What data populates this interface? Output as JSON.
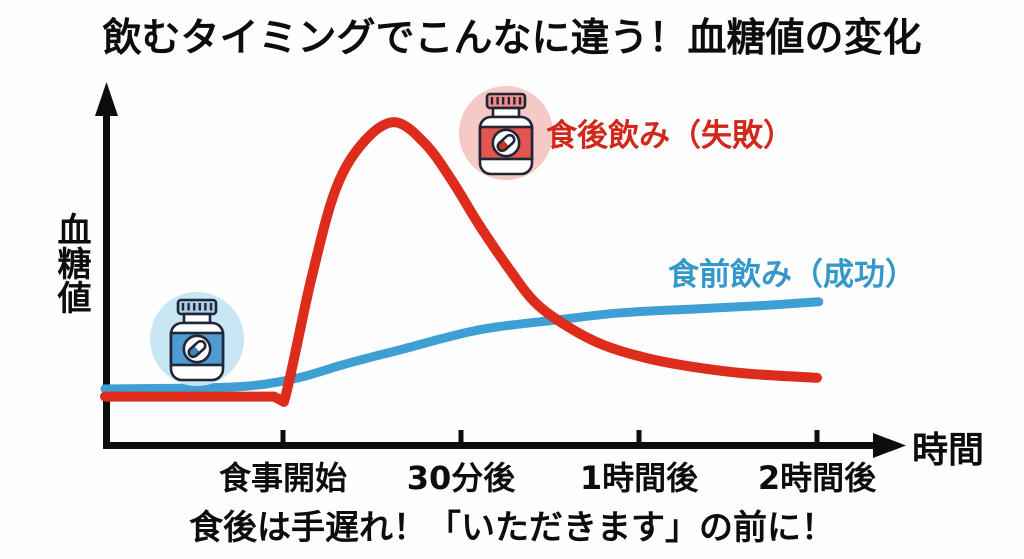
{
  "title": "飲むタイミングでこんなに違う！血糖値の変化",
  "footer": "食後は手遅れ！「いただきます」の前に！",
  "axes": {
    "y_label": "血糖値",
    "x_label": "時間"
  },
  "colors": {
    "axis": "#0d0d0d",
    "red_line": "#dd2b1c",
    "red_text": "#d2271b",
    "blue_line": "#3e9fd4",
    "blue_text": "#3598cb",
    "red_circle_bg": "#f4c9c6",
    "blue_circle_bg": "#c9e6f5",
    "red_bottle_cap": "#ef8d89",
    "red_bottle_label": "#e25550",
    "red_capsule": "#c8372a",
    "blue_bottle_cap": "#a9cde4",
    "blue_bottle_label": "#4f9cd0",
    "blue_capsule": "#3d85b8",
    "bottle_outline": "#202636",
    "bottle_body": "#ffffff"
  },
  "chart_data": {
    "type": "line",
    "x_ticks": [
      "食事開始",
      "30分後",
      "1時間後",
      "2時間後"
    ],
    "x_tick_positions": [
      1,
      2,
      3,
      4
    ],
    "x_axis_label": "時間",
    "y_axis_label": "血糖値",
    "y_unit": "relative glucose level (no numeric scale shown)",
    "series": [
      {
        "name": "食後飲み（失敗）",
        "color_key": "red_line",
        "straight_prefix": 3,
        "points": [
          [
            0,
            14.6
          ],
          [
            0.95,
            14.6
          ],
          [
            1.005,
            13.0
          ],
          [
            1.16,
            50
          ],
          [
            1.3,
            77
          ],
          [
            1.46,
            91
          ],
          [
            1.63,
            96.5
          ],
          [
            1.8,
            90
          ],
          [
            1.95,
            79
          ],
          [
            2.1,
            66
          ],
          [
            2.28,
            52
          ],
          [
            2.42,
            42.5
          ],
          [
            2.6,
            35.5
          ],
          [
            2.8,
            30
          ],
          [
            3.05,
            26
          ],
          [
            3.3,
            23.5
          ],
          [
            3.6,
            21.5
          ],
          [
            4.0,
            20.2
          ]
        ]
      },
      {
        "name": "食前飲み（成功）",
        "color_key": "blue_line",
        "straight_prefix": 0,
        "points": [
          [
            0,
            16.9
          ],
          [
            0.55,
            17.2
          ],
          [
            0.85,
            18.0
          ],
          [
            1.1,
            20.4
          ],
          [
            1.35,
            24.3
          ],
          [
            1.66,
            28.6
          ],
          [
            2.11,
            34.6
          ],
          [
            2.56,
            37.6
          ],
          [
            2.9,
            39.6
          ],
          [
            3.34,
            40.8
          ],
          [
            3.7,
            41.8
          ],
          [
            4.01,
            42.9
          ]
        ]
      }
    ]
  }
}
